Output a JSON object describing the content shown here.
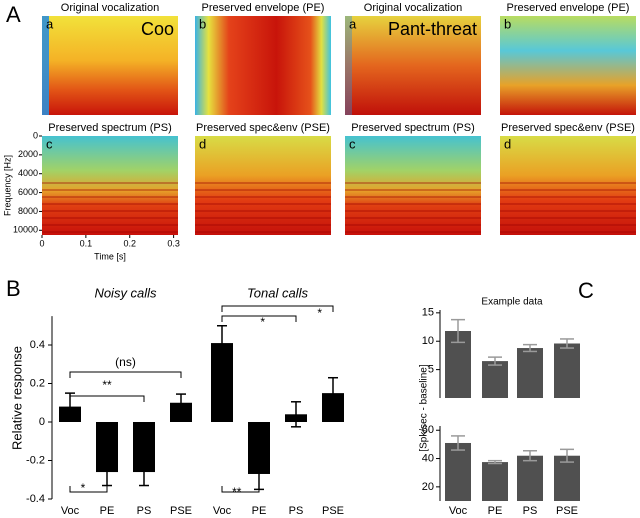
{
  "chart_data": [
    {
      "type": "spectrogram",
      "panel": "A",
      "ylabel": "Frequency [Hz]",
      "xlabel": "Time [s]",
      "ylim": [
        0,
        10500
      ],
      "yticks": [
        0,
        2000,
        4000,
        6000,
        8000,
        10000
      ],
      "y_inverted": true,
      "xlim": [
        0,
        0.31
      ],
      "xticks": [
        0,
        0.1,
        0.2,
        0.3
      ],
      "groups": [
        {
          "plots": [
            {
              "letter": "a",
              "title": "Original vocalization",
              "call": "Coo"
            },
            {
              "letter": "b",
              "title": "Preserved envelope (PE)"
            },
            {
              "letter": "c",
              "title": "Preserved spectrum (PS)"
            },
            {
              "letter": "d",
              "title": "Preserved spec&env (PSE)"
            }
          ]
        },
        {
          "plots": [
            {
              "letter": "a",
              "title": "Original vocalization",
              "call": "Pant-threat"
            },
            {
              "letter": "b",
              "title": "Preserved envelope (PE)"
            },
            {
              "letter": "c",
              "title": "Preserved spectrum (PS)"
            },
            {
              "letter": "d",
              "title": "Preserved spec&env (PSE)"
            }
          ]
        }
      ]
    },
    {
      "type": "bar",
      "panel": "B",
      "ylabel": "Relative response",
      "color": "#000000",
      "ylim": [
        -0.4,
        0.55
      ],
      "yticks": [
        -0.4,
        -0.2,
        0,
        0.2,
        0.4
      ],
      "groups": [
        {
          "title": "Noisy calls",
          "categories": [
            "Voc",
            "PE",
            "PS",
            "PSE"
          ],
          "values": [
            0.08,
            -0.26,
            -0.26,
            0.1
          ],
          "errors": [
            0.07,
            0.07,
            0.07,
            0.045
          ]
        },
        {
          "title": "Tonal calls",
          "categories": [
            "Voc",
            "PE",
            "PS",
            "PSE"
          ],
          "values": [
            0.41,
            -0.27,
            0.04,
            0.15
          ],
          "errors": [
            0.09,
            0.08,
            0.065,
            0.08
          ]
        }
      ],
      "annotations": [
        {
          "text": "(ns)",
          "group": 0,
          "from": 0,
          "to": 3
        },
        {
          "text": "**",
          "group": 0,
          "from": 0,
          "to": 2
        },
        {
          "text": "*",
          "group": 0,
          "from": 0,
          "to": 1
        },
        {
          "text": "*",
          "group": 1,
          "from": 0,
          "to": 3
        },
        {
          "text": "*",
          "group": 1,
          "from": 0,
          "to": 2
        },
        {
          "text": "**",
          "group": 1,
          "from": 0,
          "to": 1
        }
      ]
    },
    {
      "type": "bar_stack_panels",
      "panel": "C",
      "title": "Example data",
      "ylabel": "[Spk/sec - baseline]",
      "color": "#505050",
      "error_color": "#9a9a9a",
      "categories": [
        "Voc",
        "PE",
        "PS",
        "PSE"
      ],
      "subplots": [
        {
          "ylim": [
            0,
            15.5
          ],
          "yticks": [
            5,
            10,
            15
          ],
          "values": [
            11.8,
            6.5,
            8.8,
            9.6
          ],
          "errors": [
            2,
            0.7,
            0.6,
            0.8
          ]
        },
        {
          "ylim": [
            10,
            63
          ],
          "yticks": [
            20,
            40,
            60
          ],
          "values": [
            51,
            37.5,
            42,
            42
          ],
          "errors": [
            5,
            1,
            3.5,
            4.5
          ]
        }
      ]
    }
  ]
}
